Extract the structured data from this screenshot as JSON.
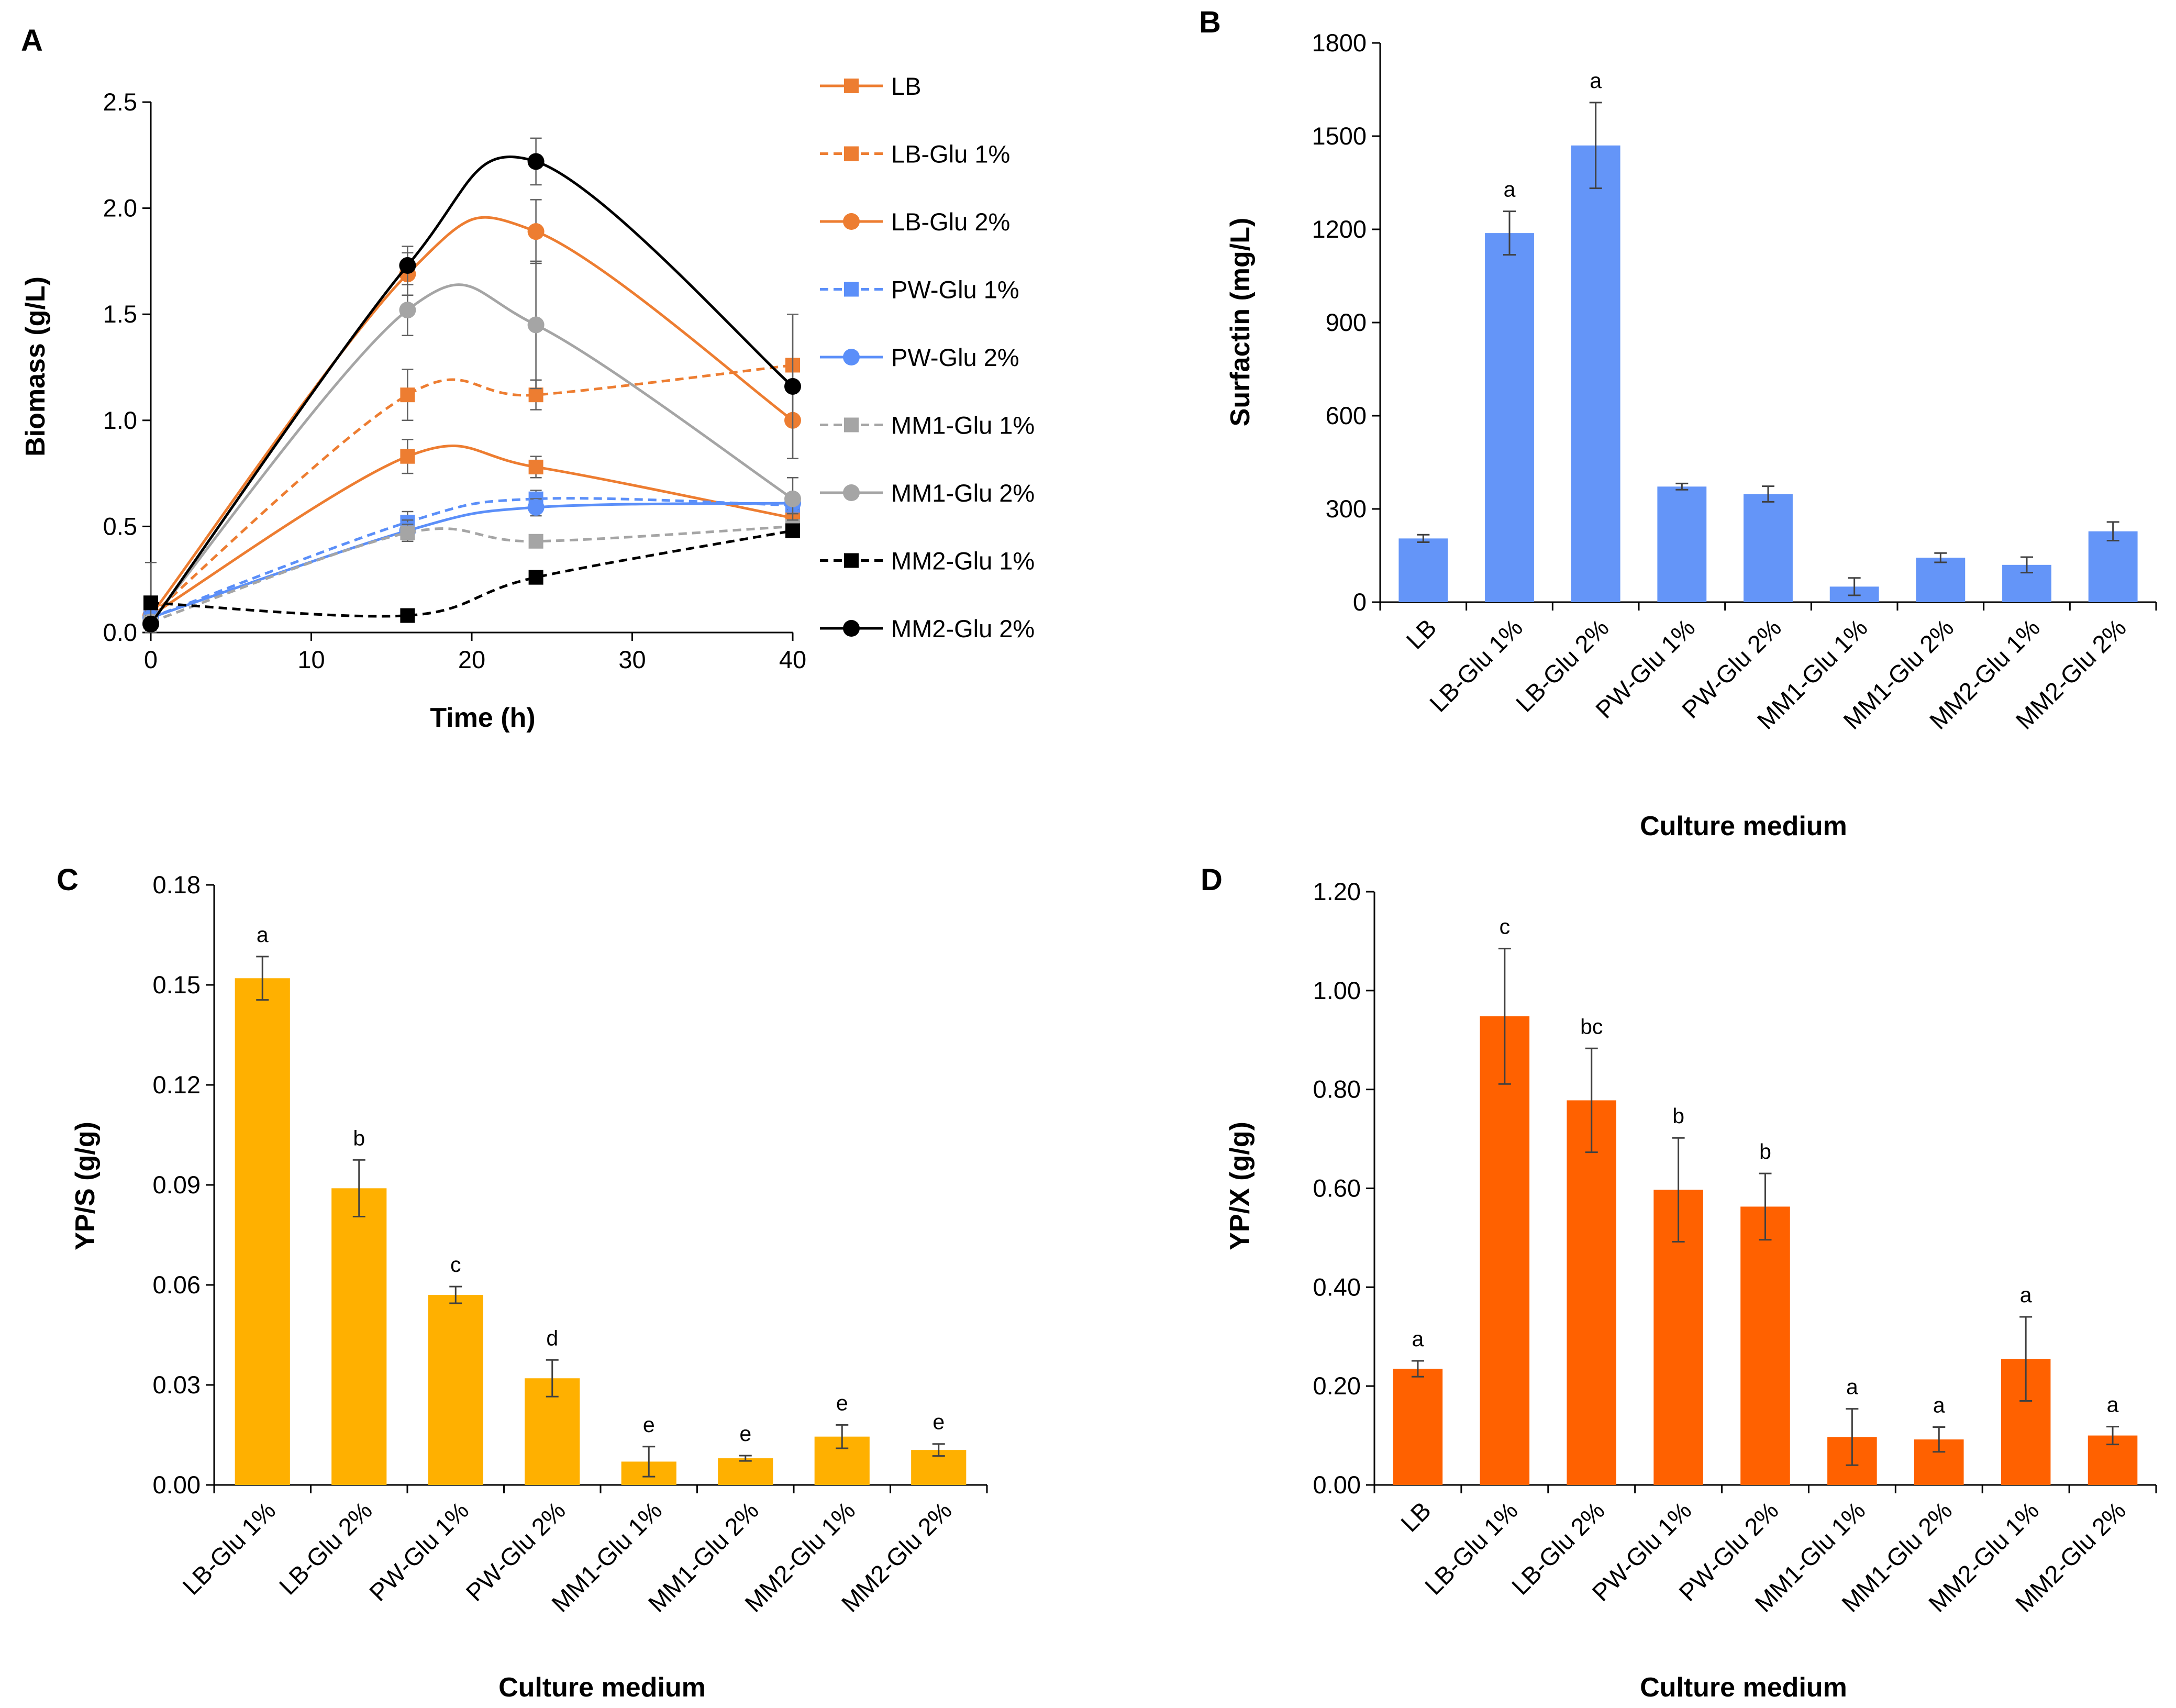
{
  "chart_data": [
    {
      "panel": "A",
      "type": "line",
      "xlabel": "Time (h)",
      "ylabel": "Biomass (g/L)",
      "xlim": [
        0,
        40
      ],
      "ylim": [
        0,
        2.5
      ],
      "xticks": [
        "0",
        "10",
        "20",
        "30",
        "40"
      ],
      "yticks": [
        "0.0",
        "0.5",
        "1.0",
        "1.5",
        "2.0",
        "2.5"
      ],
      "x": [
        0,
        16,
        24,
        40
      ],
      "legend_position": "right",
      "series": [
        {
          "name": "LB",
          "color": "#ED7D31",
          "marker": "square",
          "dash": false,
          "values": [
            0.08,
            0.83,
            0.78,
            0.54
          ],
          "err": [
            0.03,
            0.08,
            0.05,
            0.04
          ]
        },
        {
          "name": "LB-Glu 1%",
          "color": "#ED7D31",
          "marker": "square",
          "dash": true,
          "values": [
            0.08,
            1.12,
            1.12,
            1.26
          ],
          "err": [
            0.03,
            0.12,
            0.07,
            0.24
          ]
        },
        {
          "name": "LB-Glu 2%",
          "color": "#ED7D31",
          "marker": "circle",
          "dash": false,
          "values": [
            0.08,
            1.69,
            1.89,
            1.0
          ],
          "err": [
            0.03,
            0.1,
            0.15,
            0.18
          ]
        },
        {
          "name": "PW-Glu 1%",
          "color": "#5B8FF9",
          "marker": "square",
          "dash": true,
          "values": [
            0.07,
            0.52,
            0.63,
            0.6
          ],
          "err": [
            0.03,
            0.05,
            0.04,
            0.04
          ]
        },
        {
          "name": "PW-Glu 2%",
          "color": "#5B8FF9",
          "marker": "circle",
          "dash": false,
          "values": [
            0.07,
            0.48,
            0.59,
            0.61
          ],
          "err": [
            0.03,
            0.05,
            0.04,
            0.03
          ]
        },
        {
          "name": "MM1-Glu 1%",
          "color": "#A5A5A5",
          "marker": "square",
          "dash": true,
          "values": [
            0.05,
            0.47,
            0.43,
            0.5
          ],
          "err": [
            0.03,
            0.04,
            0.03,
            0.03
          ]
        },
        {
          "name": "MM1-Glu 2%",
          "color": "#A5A5A5",
          "marker": "circle",
          "dash": false,
          "values": [
            0.05,
            1.52,
            1.45,
            0.63
          ],
          "err": [
            0.03,
            0.12,
            0.3,
            0.1
          ]
        },
        {
          "name": "MM2-Glu 1%",
          "color": "#000000",
          "marker": "square",
          "dash": true,
          "values": [
            0.14,
            0.08,
            0.26,
            0.48
          ],
          "err": [
            0.19,
            0.02,
            0.03,
            0.03
          ]
        },
        {
          "name": "MM2-Glu 2%",
          "color": "#000000",
          "marker": "circle",
          "dash": false,
          "values": [
            0.04,
            1.73,
            2.22,
            1.16
          ],
          "err": [
            0.03,
            0.09,
            0.11,
            0.34
          ]
        }
      ]
    },
    {
      "panel": "B",
      "type": "bar",
      "xlabel": "Culture medium",
      "ylabel": "Surfactin (mg/L)",
      "ylim": [
        0,
        1800
      ],
      "yticks": [
        "0",
        "300",
        "600",
        "900",
        "1200",
        "1500",
        "1800"
      ],
      "color": "#6495F8",
      "categories": [
        "LB",
        "LB-Glu 1%",
        "LB-Glu 2%",
        "PW-Glu 1%",
        "PW-Glu 2%",
        "MM1-Glu 1%",
        "MM1-Glu 2%",
        "MM2-Glu 1%",
        "MM2-Glu 2%"
      ],
      "values": [
        205,
        1188,
        1470,
        372,
        348,
        50,
        143,
        120,
        228
      ],
      "err": [
        12,
        70,
        138,
        10,
        25,
        28,
        15,
        25,
        30
      ],
      "labels": [
        "",
        "a",
        "a",
        "",
        "",
        "",
        "",
        "",
        ""
      ]
    },
    {
      "panel": "C",
      "type": "bar",
      "xlabel": "Culture medium",
      "ylabel": "YP/S (g/g)",
      "ylim": [
        0,
        0.18
      ],
      "yticks": [
        "0.00",
        "0.03",
        "0.06",
        "0.09",
        "0.12",
        "0.15",
        "0.18"
      ],
      "color": "#FFB000",
      "categories": [
        "LB-Glu 1%",
        "LB-Glu 2%",
        "PW-Glu 1%",
        "PW-Glu 2%",
        "MM1-Glu 1%",
        "MM1-Glu 2%",
        "MM2-Glu 1%",
        "MM2-Glu 2%"
      ],
      "values": [
        0.152,
        0.089,
        0.057,
        0.032,
        0.007,
        0.008,
        0.0145,
        0.0105
      ],
      "err": [
        0.0065,
        0.0085,
        0.0025,
        0.0055,
        0.0045,
        0.0008,
        0.0035,
        0.0018
      ],
      "labels": [
        "a",
        "b",
        "c",
        "d",
        "e",
        "e",
        "e",
        "e"
      ]
    },
    {
      "panel": "D",
      "type": "bar",
      "xlabel": "Culture medium",
      "ylabel": "YP/X (g/g)",
      "ylim": [
        0,
        1.2
      ],
      "yticks": [
        "0.00",
        "0.20",
        "0.40",
        "0.60",
        "0.80",
        "1.00",
        "1.20"
      ],
      "color": "#FF6100",
      "categories": [
        "LB",
        "LB-Glu 1%",
        "LB-Glu 2%",
        "PW-Glu 1%",
        "PW-Glu 2%",
        "MM1-Glu 1%",
        "MM1-Glu 2%",
        "MM2-Glu 1%",
        "MM2-Glu 2%"
      ],
      "values": [
        0.235,
        0.948,
        0.778,
        0.597,
        0.563,
        0.097,
        0.092,
        0.255,
        0.1
      ],
      "err": [
        0.016,
        0.137,
        0.105,
        0.105,
        0.067,
        0.057,
        0.025,
        0.085,
        0.018
      ],
      "labels": [
        "a",
        "c",
        "bc",
        "b",
        "b",
        "a",
        "a",
        "a",
        "a"
      ]
    }
  ]
}
